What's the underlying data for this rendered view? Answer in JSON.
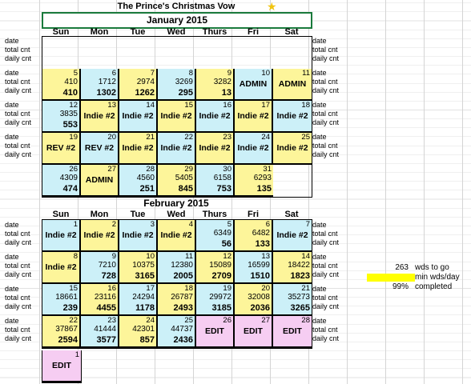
{
  "title": "The Prince's Christmas Vow",
  "row_labels": {
    "date": "date",
    "total": "total cnt",
    "daily": "daily cnt"
  },
  "dow": [
    "Sun",
    "Mon",
    "Tue",
    "Wed",
    "Thurs",
    "Fri",
    "Sat"
  ],
  "jan": {
    "header": "January 2015",
    "cells": [
      {
        "c": "white"
      },
      {
        "c": "white"
      },
      {
        "c": "white"
      },
      {
        "c": "white"
      },
      {
        "c": "white"
      },
      {
        "c": "white"
      },
      {
        "c": "white"
      },
      {
        "c": "yellow",
        "d": "5",
        "t": "410",
        "dc": "410"
      },
      {
        "c": "blue",
        "d": "6",
        "t": "1712",
        "dc": "1302"
      },
      {
        "c": "yellow",
        "d": "7",
        "t": "2974",
        "dc": "1262"
      },
      {
        "c": "blue",
        "d": "8",
        "t": "3269",
        "dc": "295"
      },
      {
        "c": "yellow",
        "d": "9",
        "t": "3282",
        "dc": "13"
      },
      {
        "c": "blue",
        "d": "10",
        "label": "ADMIN"
      },
      {
        "c": "yellow",
        "d": "11",
        "label": "ADMIN"
      },
      {
        "c": "blue",
        "d": "12",
        "t": "3835",
        "dc": "553"
      },
      {
        "c": "yellow",
        "d": "13",
        "label": "Indie #2"
      },
      {
        "c": "blue",
        "d": "14",
        "label": "Indie #2"
      },
      {
        "c": "yellow",
        "d": "15",
        "label": "Indie #2"
      },
      {
        "c": "blue",
        "d": "16",
        "label": "Indie #2"
      },
      {
        "c": "yellow",
        "d": "17",
        "label": "Indie #2"
      },
      {
        "c": "blue",
        "d": "18",
        "label": "Indie #2"
      },
      {
        "c": "yellow",
        "d": "19",
        "label": "REV #2"
      },
      {
        "c": "blue",
        "d": "20",
        "label": "REV #2"
      },
      {
        "c": "yellow",
        "d": "21",
        "label": "Indie #2"
      },
      {
        "c": "blue",
        "d": "22",
        "label": "Indie #2"
      },
      {
        "c": "yellow",
        "d": "23",
        "label": "Indie #2"
      },
      {
        "c": "blue",
        "d": "24",
        "label": "Indie #2"
      },
      {
        "c": "yellow",
        "d": "25",
        "label": "Indie #2"
      },
      {
        "c": "blue",
        "d": "26",
        "t": "4309",
        "dc": "474"
      },
      {
        "c": "yellow",
        "d": "27",
        "label": "ADMIN"
      },
      {
        "c": "blue",
        "d": "28",
        "t": "4560",
        "dc": "251"
      },
      {
        "c": "yellow",
        "d": "29",
        "t": "5405",
        "dc": "845"
      },
      {
        "c": "blue",
        "d": "30",
        "t": "6158",
        "dc": "753"
      },
      {
        "c": "yellow",
        "d": "31",
        "t": "6293",
        "dc": "135"
      }
    ]
  },
  "feb": {
    "header": "February 2015",
    "cells": [
      {
        "c": "blue",
        "d": "1",
        "label": "Indie #2"
      },
      {
        "c": "yellow",
        "d": "2",
        "label": "Indie #2"
      },
      {
        "c": "blue",
        "d": "3",
        "label": "Indie #2"
      },
      {
        "c": "yellow",
        "d": "4",
        "label": "Indie #2"
      },
      {
        "c": "blue",
        "d": "5",
        "t": "6349",
        "dc": "56"
      },
      {
        "c": "yellow",
        "d": "6",
        "t": "6482",
        "dc": "133"
      },
      {
        "c": "blue",
        "d": "7",
        "label": "Indie #2"
      },
      {
        "c": "yellow",
        "d": "8",
        "label": "Indie #2"
      },
      {
        "c": "blue",
        "d": "9",
        "t": "7210",
        "dc": "728"
      },
      {
        "c": "yellow",
        "d": "10",
        "t": "10375",
        "dc": "3165"
      },
      {
        "c": "blue",
        "d": "11",
        "t": "12380",
        "dc": "2005"
      },
      {
        "c": "yellow",
        "d": "12",
        "t": "15089",
        "dc": "2709"
      },
      {
        "c": "blue",
        "d": "13",
        "t": "16599",
        "dc": "1510"
      },
      {
        "c": "yellow",
        "d": "14",
        "t": "18422",
        "dc": "1823"
      },
      {
        "c": "blue",
        "d": "15",
        "t": "18661",
        "dc": "239"
      },
      {
        "c": "yellow",
        "d": "16",
        "t": "23116",
        "dc": "4455"
      },
      {
        "c": "blue",
        "d": "17",
        "t": "24294",
        "dc": "1178"
      },
      {
        "c": "yellow",
        "d": "18",
        "t": "26787",
        "dc": "2493"
      },
      {
        "c": "blue",
        "d": "19",
        "t": "29972",
        "dc": "3185"
      },
      {
        "c": "yellow",
        "d": "20",
        "t": "32008",
        "dc": "2036"
      },
      {
        "c": "blue",
        "d": "21",
        "t": "35273",
        "dc": "3265"
      },
      {
        "c": "yellow",
        "d": "22",
        "t": "37867",
        "dc": "2594"
      },
      {
        "c": "blue",
        "d": "23",
        "t": "41444",
        "dc": "3577"
      },
      {
        "c": "yellow",
        "d": "24",
        "t": "42301",
        "dc": "857"
      },
      {
        "c": "blue",
        "d": "25",
        "t": "44737",
        "dc": "2436"
      },
      {
        "c": "pink",
        "d": "26",
        "label": "EDIT"
      },
      {
        "c": "pink",
        "d": "27",
        "label": "EDIT"
      },
      {
        "c": "pink",
        "d": "28",
        "label": "EDIT"
      }
    ],
    "extra": {
      "c": "pink",
      "d": "1",
      "label": "EDIT"
    }
  },
  "stats": {
    "wds_to_go_value": "263",
    "wds_to_go_label": "wds to go",
    "min_label": "min wds/day",
    "completed_value": "99%",
    "completed_label": "completed",
    "highlight_color": "#ffff00"
  }
}
